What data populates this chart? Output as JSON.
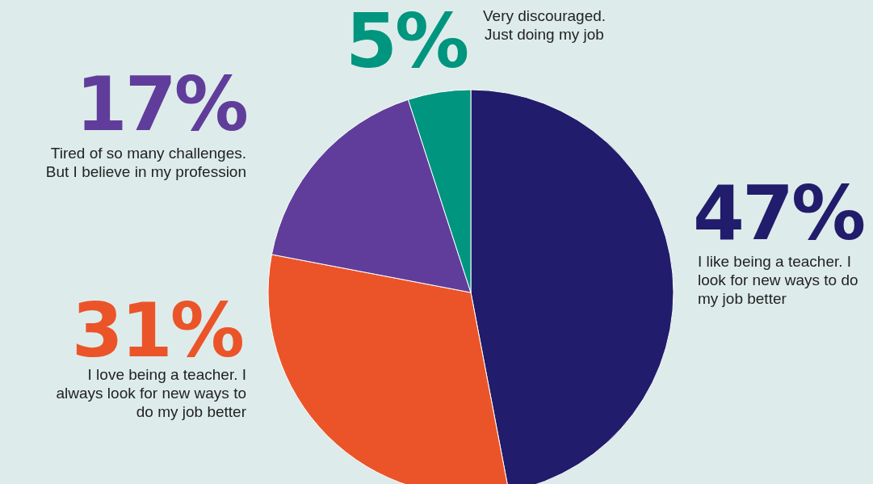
{
  "chart_data": {
    "type": "pie",
    "categories": [
      "I like being a teacher. I look for new ways to do my job better",
      "I love being a teacher. I always look for new ways to do my job better",
      "Tired of so many challenges. But I believe in my profession",
      "Very discouraged. Just doing my job"
    ],
    "values": [
      47,
      31,
      17,
      5
    ],
    "value_labels": [
      "47%",
      "31%",
      "17%",
      "5%"
    ],
    "colors": [
      "#211c6b",
      "#eb5429",
      "#613d9b",
      "#00957f"
    ]
  }
}
